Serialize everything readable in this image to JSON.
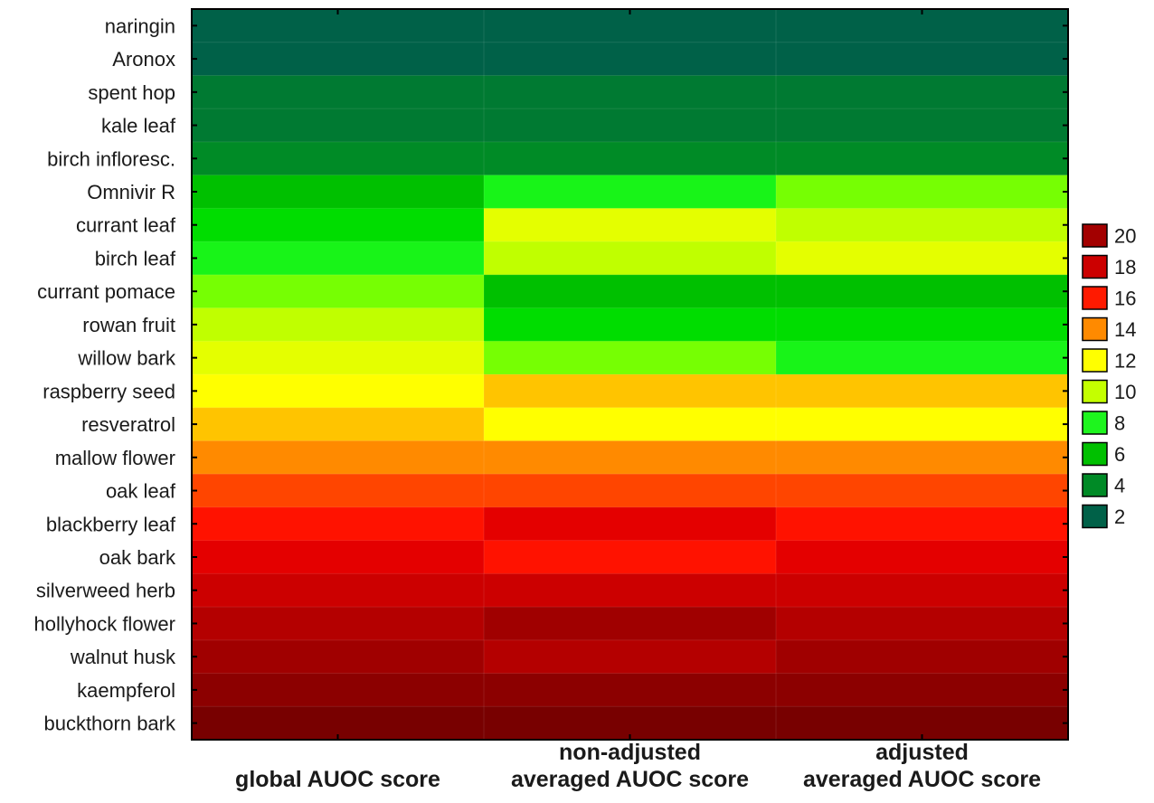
{
  "chart_data": {
    "type": "heatmap",
    "rows": [
      "naringin",
      "Aronox",
      "spent hop",
      "kale leaf",
      "birch infloresc.",
      "Omnivir R",
      "currant leaf",
      "birch leaf",
      "currant pomace",
      "rowan fruit",
      "willow bark",
      "raspberry seed",
      "resveratrol",
      "mallow flower",
      "oak leaf",
      "blackberry leaf",
      "oak bark",
      "silverweed herb",
      "hollyhock flower",
      "walnut husk",
      "kaempferol",
      "buckthorn bark"
    ],
    "columns": [
      "global AUOC score",
      "non-adjusted averaged AUOC score",
      "adjusted averaged AUOC score"
    ],
    "column_label_lines": [
      [
        "global AUOC score"
      ],
      [
        "non-adjusted",
        "averaged AUOC score"
      ],
      [
        "adjusted",
        "averaged AUOC score"
      ]
    ],
    "values": [
      [
        1,
        1,
        1
      ],
      [
        2,
        2,
        2
      ],
      [
        3,
        3,
        3
      ],
      [
        4,
        4,
        4
      ],
      [
        5,
        5,
        5
      ],
      [
        6,
        8,
        9
      ],
      [
        7,
        11,
        10
      ],
      [
        8,
        10,
        11
      ],
      [
        9,
        6,
        6
      ],
      [
        10,
        7,
        7
      ],
      [
        11,
        9,
        8
      ],
      [
        12,
        13,
        13
      ],
      [
        13,
        12,
        12
      ],
      [
        14,
        14,
        14
      ],
      [
        15,
        15,
        15
      ],
      [
        16,
        17,
        16
      ],
      [
        17,
        16,
        17
      ],
      [
        18,
        18,
        18
      ],
      [
        19,
        20,
        19
      ],
      [
        20,
        19,
        20
      ],
      [
        21,
        21,
        21
      ],
      [
        22,
        22,
        22
      ]
    ],
    "color_scale": [
      {
        "max": 2,
        "color": "#006148"
      },
      {
        "max": 4,
        "color": "#007a32"
      },
      {
        "max": 5,
        "color": "#008b26"
      },
      {
        "max": 6,
        "color": "#00c000"
      },
      {
        "max": 7,
        "color": "#00dd00"
      },
      {
        "max": 8,
        "color": "#18f418"
      },
      {
        "max": 9,
        "color": "#76ff03"
      },
      {
        "max": 10,
        "color": "#c0ff00"
      },
      {
        "max": 11,
        "color": "#e4ff00"
      },
      {
        "max": 12,
        "color": "#ffff00"
      },
      {
        "max": 13,
        "color": "#ffc400"
      },
      {
        "max": 14,
        "color": "#ff8a00"
      },
      {
        "max": 15,
        "color": "#ff4500"
      },
      {
        "max": 16,
        "color": "#ff1200"
      },
      {
        "max": 17,
        "color": "#e40000"
      },
      {
        "max": 18,
        "color": "#cc0000"
      },
      {
        "max": 19,
        "color": "#b40000"
      },
      {
        "max": 20,
        "color": "#a00000"
      },
      {
        "max": 21,
        "color": "#8c0000"
      },
      {
        "max": 99,
        "color": "#780000"
      }
    ],
    "legend": [
      {
        "label": "20",
        "color": "#a30000"
      },
      {
        "label": "18",
        "color": "#cc0000"
      },
      {
        "label": "16",
        "color": "#ff1a00"
      },
      {
        "label": "14",
        "color": "#ff8a00"
      },
      {
        "label": "12",
        "color": "#ffff00"
      },
      {
        "label": "10",
        "color": "#c4ff00"
      },
      {
        "label": "8",
        "color": "#1ef51e"
      },
      {
        "label": "6",
        "color": "#00c000"
      },
      {
        "label": "4",
        "color": "#008a26"
      },
      {
        "label": "2",
        "color": "#006148"
      }
    ],
    "legend_position": "right",
    "grid": false
  }
}
